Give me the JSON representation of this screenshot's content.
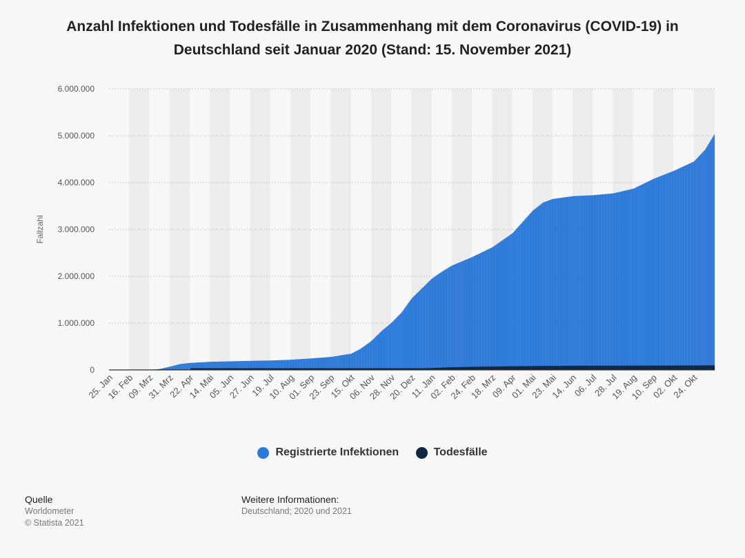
{
  "title": "Anzahl Infektionen und Todesfälle in Zusammenhang mit dem Coronavirus (COVID-19) in Deutschland seit Januar 2020 (Stand: 15. November 2021)",
  "colors": {
    "infections": "#2e7ad9",
    "deaths": "#0f2742",
    "grid": "#c8c8c8",
    "band": "#ececec"
  },
  "legend": [
    {
      "label": "Registrierte Infektionen",
      "color": "#2e7ad9"
    },
    {
      "label": "Todesfälle",
      "color": "#0f2742"
    }
  ],
  "footer": {
    "source_heading": "Quelle",
    "source_lines": [
      "Worldometer",
      "© Statista 2021"
    ],
    "info_heading": "Weitere Informationen:",
    "info_text": "Deutschland; 2020 und 2021"
  },
  "chart_data": {
    "type": "bar",
    "stacked": false,
    "ylabel": "Fallzahl",
    "xlabel": "",
    "ylim": [
      0,
      6000000
    ],
    "yticks": [
      0,
      1000000,
      2000000,
      3000000,
      4000000,
      5000000,
      6000000
    ],
    "ytick_labels": [
      "0",
      "1.000.000",
      "2.000.000",
      "3.000.000",
      "4.000.000",
      "5.000.000",
      "6.000.000"
    ],
    "grid": true,
    "legend_position": "bottom",
    "x_range": [
      "2020-01-25",
      "2021-11-15"
    ],
    "x_ticks": [
      "25. Jan",
      "16. Feb",
      "09. Mrz",
      "31. Mrz",
      "22. Apr",
      "14. Mai",
      "05. Jun",
      "27. Jun",
      "19. Jul",
      "10. Aug",
      "01. Sep",
      "23. Sep",
      "15. Okt",
      "06. Nov",
      "28. Nov",
      "20. Dez",
      "11. Jan",
      "02. Feb",
      "24. Feb",
      "18. Mrz",
      "09. Apr",
      "01. Mai",
      "23. Mai",
      "14. Jun",
      "06. Jul",
      "28. Jul",
      "19. Aug",
      "10. Sep",
      "02. Okt",
      "24. Okt"
    ],
    "series": [
      {
        "name": "Registrierte Infektionen",
        "points": [
          [
            "2020-01-25",
            0
          ],
          [
            "2020-02-16",
            16
          ],
          [
            "2020-03-09",
            1200
          ],
          [
            "2020-03-20",
            20000
          ],
          [
            "2020-03-31",
            70000
          ],
          [
            "2020-04-11",
            125000
          ],
          [
            "2020-04-22",
            150000
          ],
          [
            "2020-05-14",
            174000
          ],
          [
            "2020-06-05",
            184000
          ],
          [
            "2020-06-27",
            194000
          ],
          [
            "2020-07-19",
            202000
          ],
          [
            "2020-08-10",
            218000
          ],
          [
            "2020-09-01",
            245000
          ],
          [
            "2020-09-23",
            278000
          ],
          [
            "2020-10-15",
            348000
          ],
          [
            "2020-10-25",
            450000
          ],
          [
            "2020-11-06",
            620000
          ],
          [
            "2020-11-17",
            830000
          ],
          [
            "2020-11-28",
            1010000
          ],
          [
            "2020-12-09",
            1230000
          ],
          [
            "2020-12-20",
            1530000
          ],
          [
            "2021-01-01",
            1760000
          ],
          [
            "2021-01-11",
            1950000
          ],
          [
            "2021-01-22",
            2100000
          ],
          [
            "2021-02-02",
            2230000
          ],
          [
            "2021-02-24",
            2410000
          ],
          [
            "2021-03-18",
            2620000
          ],
          [
            "2021-04-09",
            2920000
          ],
          [
            "2021-05-01",
            3400000
          ],
          [
            "2021-05-12",
            3570000
          ],
          [
            "2021-05-23",
            3650000
          ],
          [
            "2021-06-14",
            3710000
          ],
          [
            "2021-07-06",
            3730000
          ],
          [
            "2021-07-28",
            3770000
          ],
          [
            "2021-08-19",
            3870000
          ],
          [
            "2021-09-10",
            4080000
          ],
          [
            "2021-10-02",
            4250000
          ],
          [
            "2021-10-24",
            4450000
          ],
          [
            "2021-11-05",
            4700000
          ],
          [
            "2021-11-15",
            5020000
          ]
        ]
      },
      {
        "name": "Todesfälle",
        "points": [
          [
            "2020-01-25",
            0
          ],
          [
            "2020-03-09",
            0
          ],
          [
            "2020-03-31",
            700
          ],
          [
            "2020-04-22",
            5000
          ],
          [
            "2020-05-14",
            7900
          ],
          [
            "2020-07-19",
            9100
          ],
          [
            "2020-09-01",
            9300
          ],
          [
            "2020-10-15",
            9800
          ],
          [
            "2020-11-06",
            11500
          ],
          [
            "2020-11-28",
            16500
          ],
          [
            "2020-12-20",
            27000
          ],
          [
            "2021-01-11",
            41000
          ],
          [
            "2021-02-02",
            58000
          ],
          [
            "2021-03-18",
            74000
          ],
          [
            "2021-05-01",
            83000
          ],
          [
            "2021-06-14",
            90000
          ],
          [
            "2021-08-19",
            92000
          ],
          [
            "2021-10-02",
            94000
          ],
          [
            "2021-11-15",
            98000
          ]
        ]
      }
    ]
  }
}
